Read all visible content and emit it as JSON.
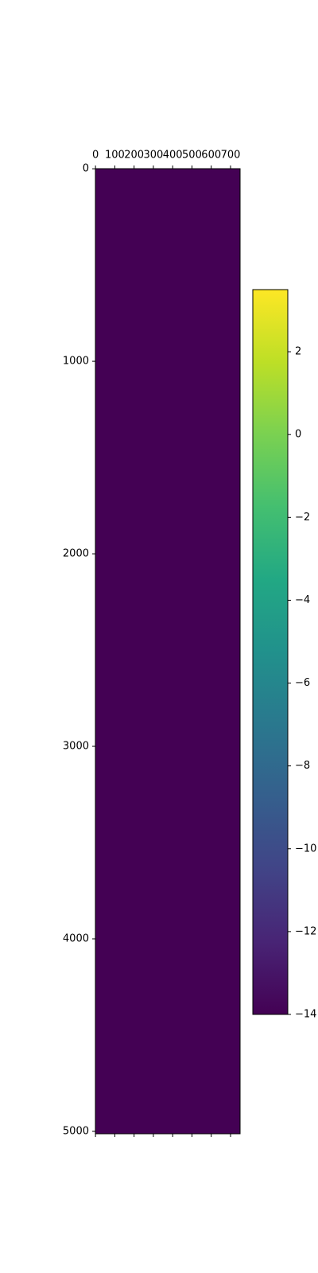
{
  "chart_data": {
    "type": "heatmap",
    "colormap": "viridis",
    "values": [
      [
        -14
      ]
    ],
    "xlim": [
      -0.5,
      749.5
    ],
    "xticks": [
      0,
      100,
      200,
      300,
      400,
      500,
      600,
      700
    ],
    "ylim": [
      -0.5,
      5012.5
    ],
    "yticks": [
      0,
      1000,
      2000,
      3000,
      4000,
      5000
    ],
    "clim": [
      -14,
      3.5
    ],
    "cticks": [
      {
        "value": 2,
        "label": "2"
      },
      {
        "value": 0,
        "label": "0"
      },
      {
        "value": -2,
        "label": "−2"
      },
      {
        "value": -4,
        "label": "−4"
      },
      {
        "value": -6,
        "label": "−6"
      },
      {
        "value": -8,
        "label": "−8"
      },
      {
        "value": -10,
        "label": "−10"
      },
      {
        "value": -12,
        "label": "−12"
      },
      {
        "value": -14,
        "label": "−14"
      }
    ]
  }
}
